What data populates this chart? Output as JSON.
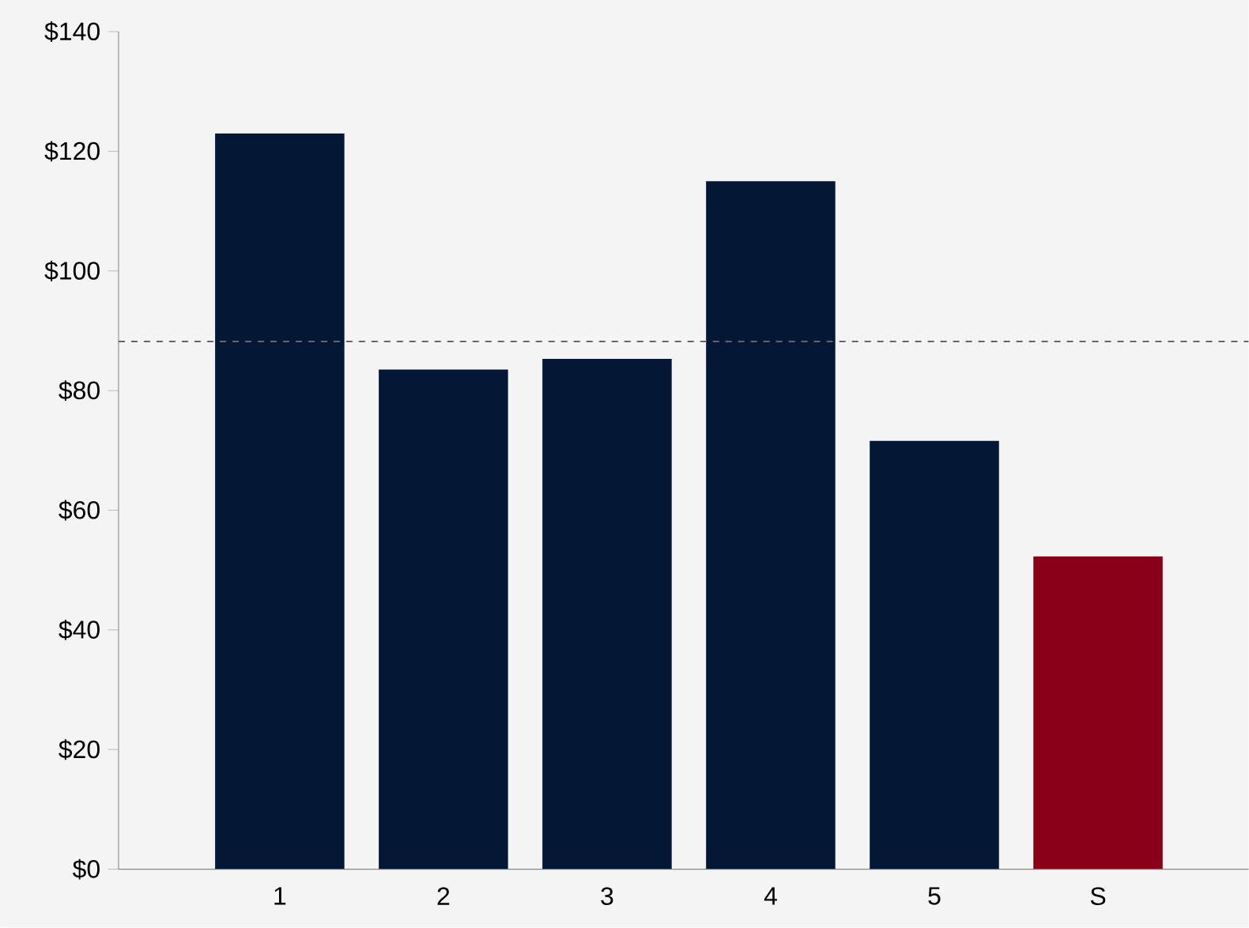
{
  "chart_data": {
    "type": "bar",
    "categories": [
      "1",
      "2",
      "3",
      "4",
      "5",
      "S"
    ],
    "values": [
      123,
      83.5,
      85.3,
      115,
      71.6,
      52.3
    ],
    "colors": [
      "#041835",
      "#041835",
      "#041835",
      "#041835",
      "#041835",
      "#8b0019"
    ],
    "ylim": [
      0,
      140
    ],
    "yticks": [
      {
        "value": 0,
        "label": "$0"
      },
      {
        "value": 20,
        "label": "$20"
      },
      {
        "value": 40,
        "label": "$40"
      },
      {
        "value": 60,
        "label": "$60"
      },
      {
        "value": 80,
        "label": "$80"
      },
      {
        "value": 100,
        "label": "$100"
      },
      {
        "value": 120,
        "label": "$120"
      },
      {
        "value": 140,
        "label": "$140"
      }
    ],
    "ref_lines": [
      {
        "axis": "y",
        "value": 88.2,
        "color": "#666666",
        "line_style": "dashed"
      }
    ]
  }
}
